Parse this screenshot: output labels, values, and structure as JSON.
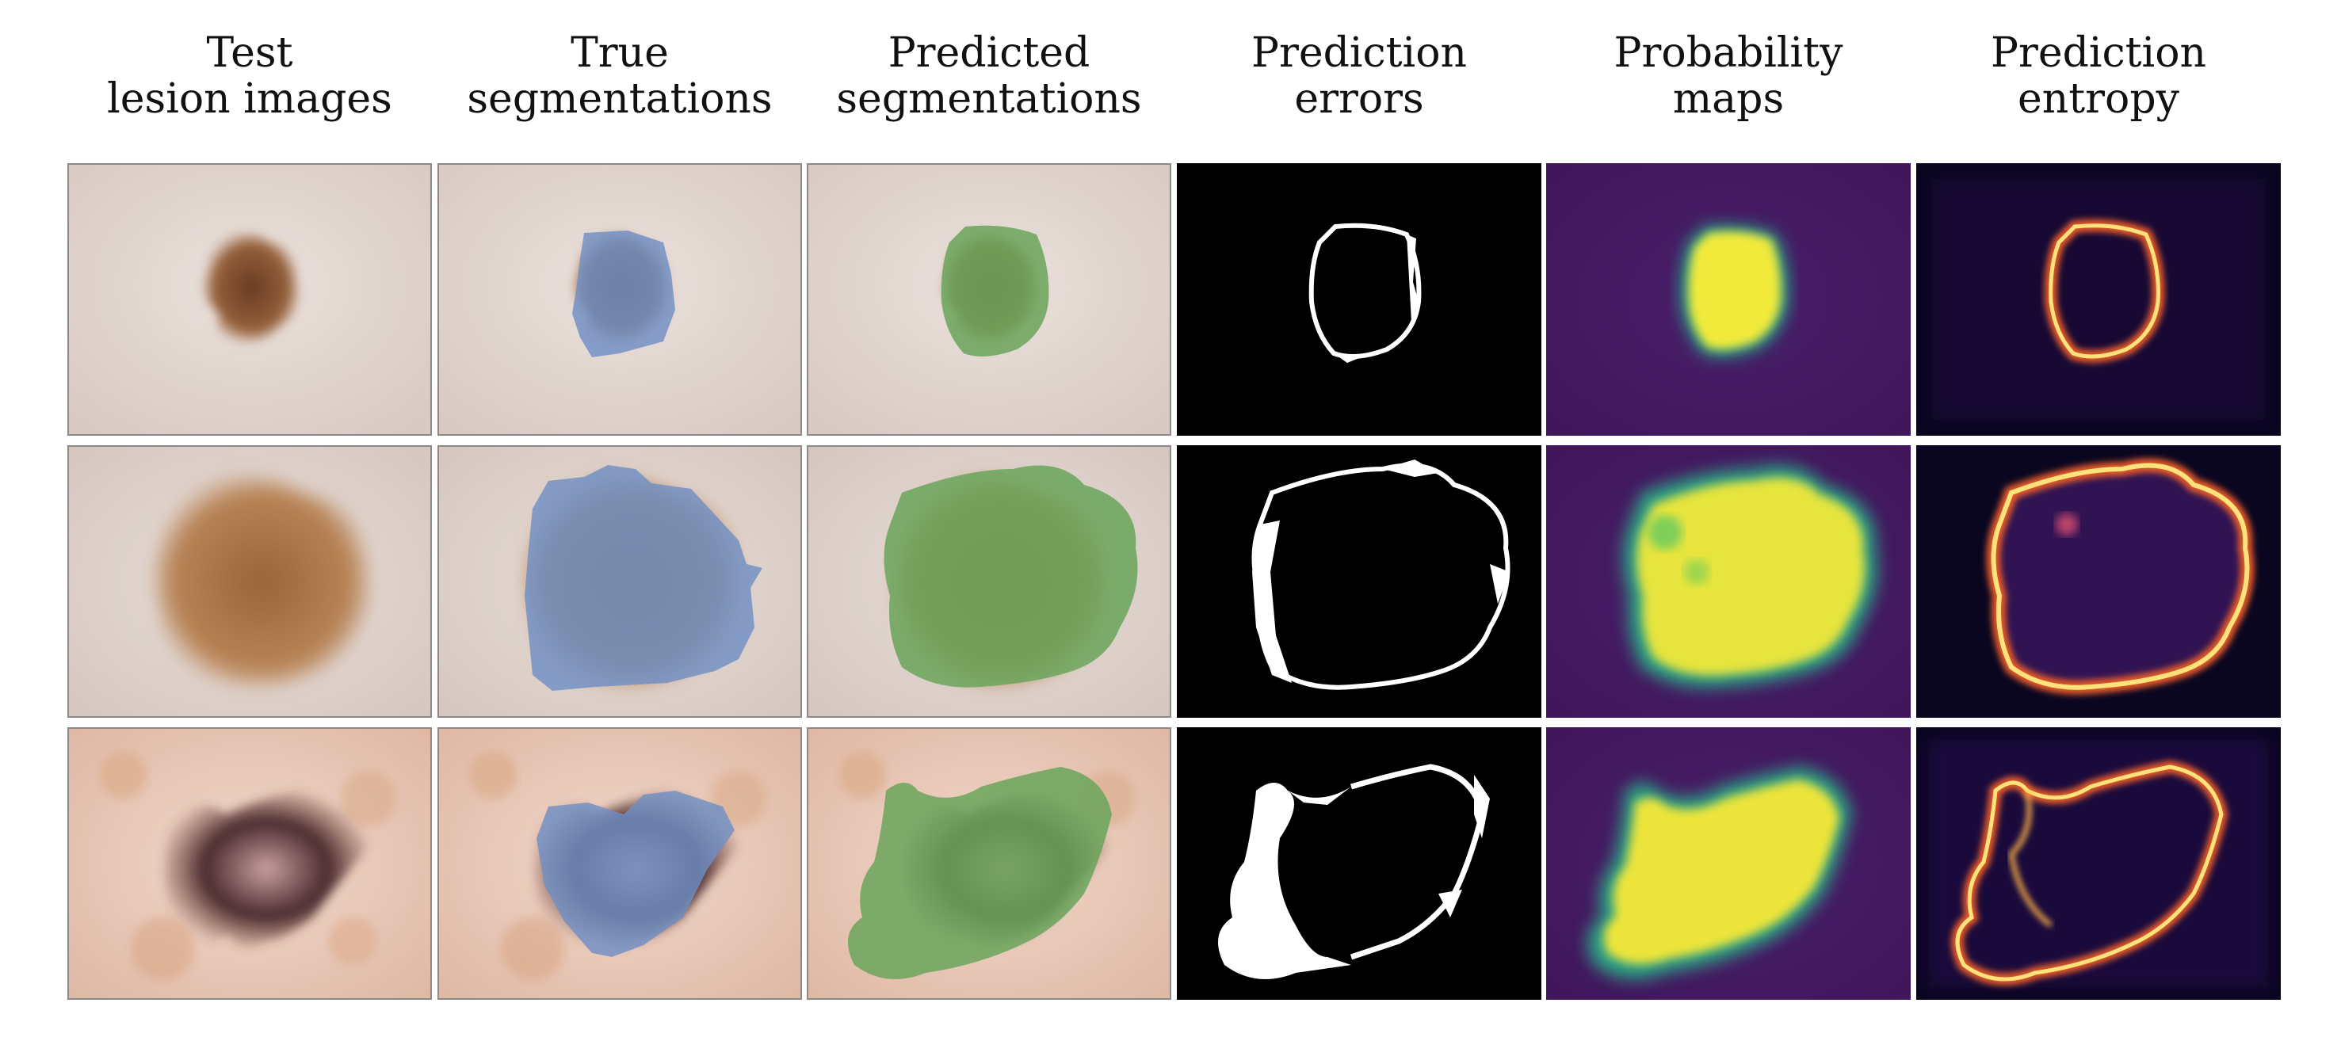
{
  "columns": [
    {
      "line1": "Test",
      "line2": "lesion images"
    },
    {
      "line1": "True",
      "line2": "segmentations"
    },
    {
      "line1": "Predicted",
      "line2": "segmentations"
    },
    {
      "line1": "Prediction",
      "line2": "errors"
    },
    {
      "line1": "Probability",
      "line2": "maps"
    },
    {
      "line1": "Prediction",
      "line2": "entropy"
    }
  ],
  "colors": {
    "skin_light": "#e6d9d2",
    "skin_warm": "#efd3c4",
    "lesion_brown": "#8a5530",
    "true_overlay": "#6f8fc4",
    "pred_overlay": "#6aa55a",
    "error_bg": "#000000",
    "error_fg": "#ffffff",
    "prob_low": "#441a63",
    "prob_high": "#f2ea3a",
    "entropy_bg": "#0a0620",
    "entropy_edge": "#ffd15a"
  }
}
